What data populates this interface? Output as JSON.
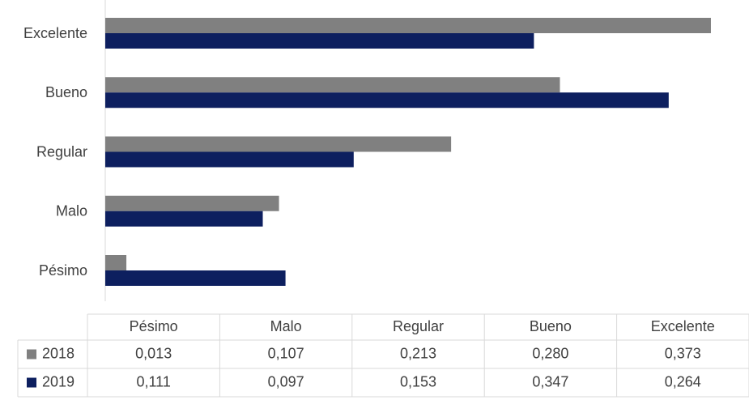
{
  "chart_data": {
    "type": "bar",
    "orientation": "horizontal",
    "categories": [
      "Pésimo",
      "Malo",
      "Regular",
      "Bueno",
      "Excelente"
    ],
    "series": [
      {
        "name": "2018",
        "color": "#808080",
        "values": [
          0.013,
          0.107,
          0.213,
          0.28,
          0.373
        ],
        "value_labels": [
          "0,013",
          "0,107",
          "0,213",
          "0,280",
          "0,373"
        ]
      },
      {
        "name": "2019",
        "color": "#0d1f5f",
        "values": [
          0.111,
          0.097,
          0.153,
          0.347,
          0.264
        ],
        "value_labels": [
          "0,111",
          "0,097",
          "0,153",
          "0,347",
          "0,264"
        ]
      }
    ],
    "xlim": [
      0,
      0.38
    ]
  }
}
